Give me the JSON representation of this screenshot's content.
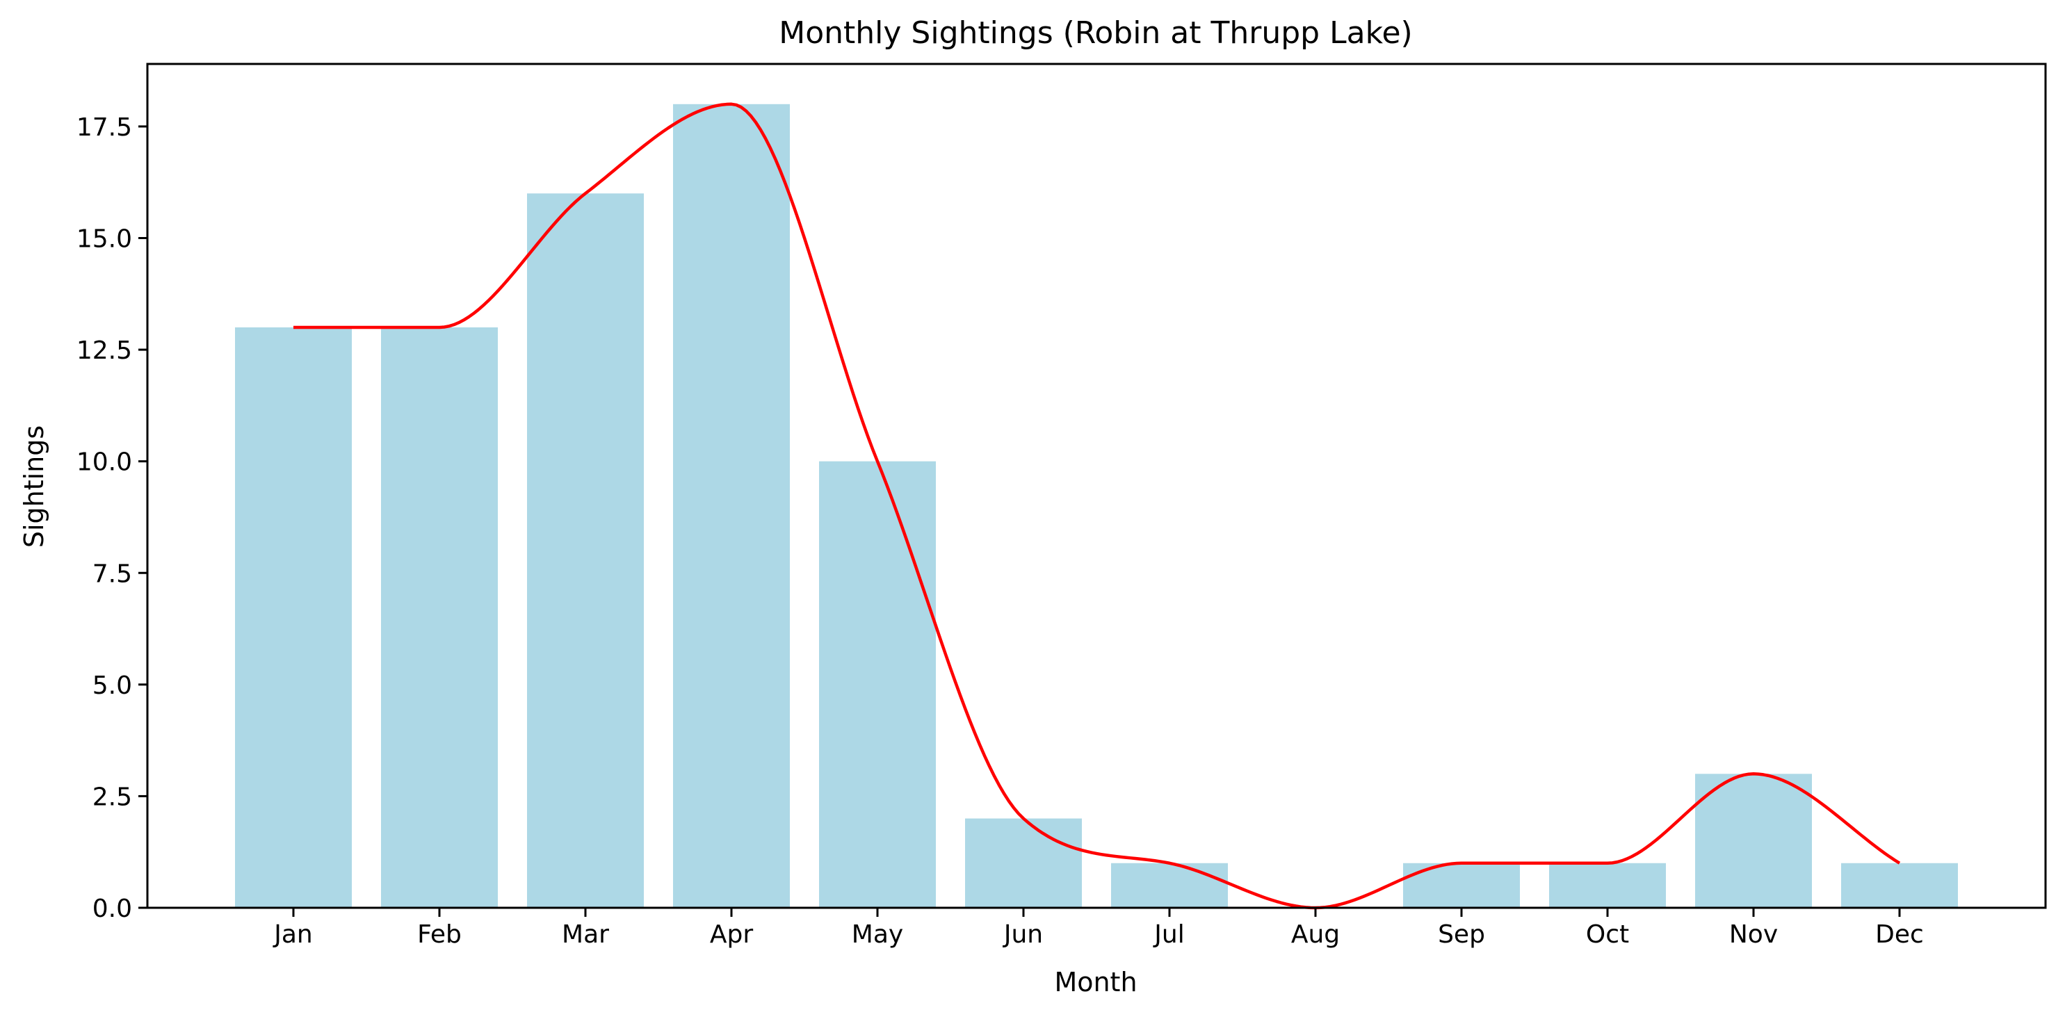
{
  "chart_data": {
    "type": "bar",
    "title": "Monthly Sightings (Robin at Thrupp Lake)",
    "xlabel": "Month",
    "ylabel": "Sightings",
    "categories": [
      "Jan",
      "Feb",
      "Mar",
      "Apr",
      "May",
      "Jun",
      "Jul",
      "Aug",
      "Sep",
      "Oct",
      "Nov",
      "Dec"
    ],
    "values": [
      13,
      13,
      16,
      18,
      10,
      2,
      1,
      0,
      1,
      1,
      3,
      1
    ],
    "ylim": [
      0,
      18.9
    ],
    "yticks": [
      0.0,
      2.5,
      5.0,
      7.5,
      10.0,
      12.5,
      15.0,
      17.5
    ],
    "ytick_labels": [
      "0.0",
      "2.5",
      "5.0",
      "7.5",
      "10.0",
      "12.5",
      "15.0",
      "17.5"
    ],
    "grid": false,
    "bar_color": "#add8e6",
    "line_color": "#ff0000",
    "overlay": "smoothed line through bar values"
  }
}
